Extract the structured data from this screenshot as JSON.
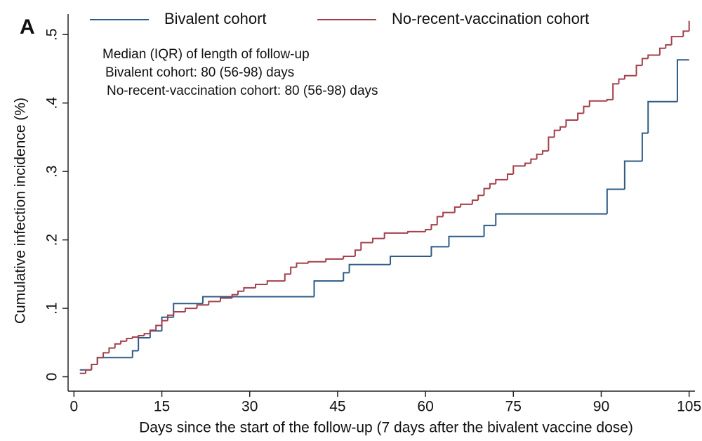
{
  "chart_data": {
    "type": "step",
    "panel_label": "A",
    "xlabel": "Days since the start of the follow-up (7 days after the bivalent vaccine dose)",
    "ylabel": "Cumulative infection incidence (%)",
    "annotations": [
      "Median (IQR) of length of follow-up",
      "Bivalent cohort: 80 (56-98) days",
      "No-recent-vaccination cohort: 80 (56-98) days"
    ],
    "xlim": [
      -1,
      106
    ],
    "ylim": [
      -0.021,
      0.53
    ],
    "xticks": [
      0,
      15,
      30,
      45,
      60,
      75,
      90,
      105
    ],
    "yticks": [
      0,
      {
        "value": 0.1,
        "label": ".1"
      },
      {
        "value": 0.2,
        "label": ".2"
      },
      {
        "value": 0.3,
        "label": ".3"
      },
      {
        "value": 0.4,
        "label": ".4"
      },
      {
        "value": 0.5,
        "label": ".5"
      }
    ],
    "legend": "top",
    "series": [
      {
        "name": "Bivalent cohort",
        "color": "#2f5b86",
        "x": [
          1,
          3,
          4,
          10,
          11,
          13,
          15,
          17,
          22,
          41,
          46,
          47,
          54,
          61,
          64,
          70,
          72,
          91,
          94,
          97,
          98,
          103,
          105
        ],
        "values": [
          0.01,
          0.018,
          0.028,
          0.038,
          0.057,
          0.067,
          0.087,
          0.107,
          0.117,
          0.14,
          0.152,
          0.164,
          0.176,
          0.19,
          0.205,
          0.221,
          0.238,
          0.274,
          0.315,
          0.356,
          0.402,
          0.463,
          0.463
        ]
      },
      {
        "name": "No-recent-vaccination cohort",
        "color": "#a3404c",
        "x": [
          1,
          2,
          3,
          4,
          5,
          6,
          7,
          8,
          9,
          10,
          11,
          12,
          13,
          14,
          15,
          16,
          17,
          19,
          21,
          23,
          25,
          27,
          28,
          29,
          31,
          33,
          36,
          37,
          38,
          40,
          43,
          46,
          48,
          49,
          51,
          53,
          57,
          60,
          61,
          62,
          63,
          65,
          66,
          68,
          69,
          70,
          71,
          72,
          74,
          75,
          77,
          78,
          79,
          80,
          81,
          82,
          83,
          84,
          86,
          87,
          88,
          91,
          92,
          93,
          94,
          96,
          97,
          98,
          100,
          101,
          102,
          104,
          105
        ],
        "values": [
          0.005,
          0.01,
          0.018,
          0.028,
          0.035,
          0.042,
          0.048,
          0.052,
          0.056,
          0.058,
          0.06,
          0.063,
          0.068,
          0.075,
          0.082,
          0.09,
          0.095,
          0.1,
          0.105,
          0.11,
          0.115,
          0.12,
          0.125,
          0.13,
          0.135,
          0.14,
          0.15,
          0.16,
          0.166,
          0.168,
          0.172,
          0.176,
          0.185,
          0.196,
          0.202,
          0.21,
          0.212,
          0.215,
          0.222,
          0.234,
          0.24,
          0.248,
          0.252,
          0.258,
          0.265,
          0.275,
          0.282,
          0.288,
          0.296,
          0.308,
          0.312,
          0.318,
          0.325,
          0.33,
          0.35,
          0.36,
          0.365,
          0.375,
          0.385,
          0.395,
          0.403,
          0.405,
          0.428,
          0.435,
          0.44,
          0.455,
          0.465,
          0.47,
          0.48,
          0.485,
          0.497,
          0.505,
          0.52
        ]
      }
    ]
  }
}
